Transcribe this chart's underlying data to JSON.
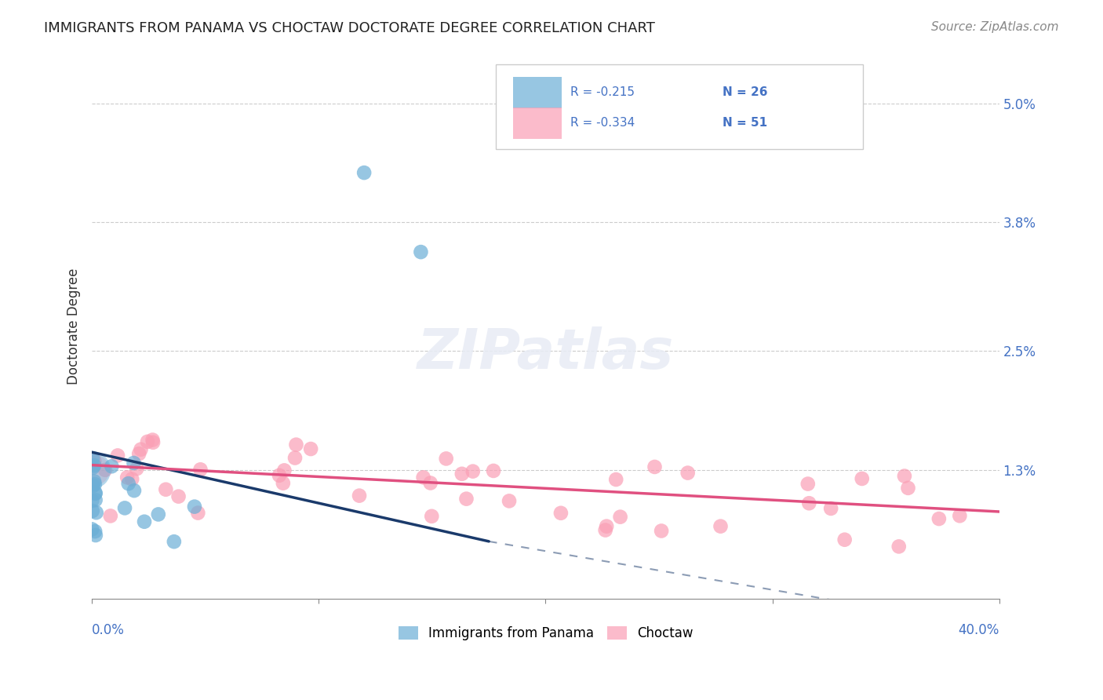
{
  "title": "IMMIGRANTS FROM PANAMA VS CHOCTAW DOCTORATE DEGREE CORRELATION CHART",
  "source": "Source: ZipAtlas.com",
  "ylabel": "Doctorate Degree",
  "yticks": [
    0.0,
    0.013,
    0.025,
    0.038,
    0.05
  ],
  "ytick_labels": [
    "",
    "1.3%",
    "2.5%",
    "3.8%",
    "5.0%"
  ],
  "xlim": [
    0.0,
    0.4
  ],
  "ylim": [
    0.0,
    0.055
  ],
  "legend_blue_r": "R = -0.215",
  "legend_blue_n": "N = 26",
  "legend_pink_r": "R = -0.334",
  "legend_pink_n": "N = 51",
  "legend_label_blue": "Immigrants from Panama",
  "legend_label_pink": "Choctaw",
  "blue_color": "#6baed6",
  "pink_color": "#fa9fb5",
  "blue_line_color": "#1a3a6b",
  "pink_line_color": "#e05080",
  "background_color": "#ffffff",
  "watermark": "ZIPatlas"
}
